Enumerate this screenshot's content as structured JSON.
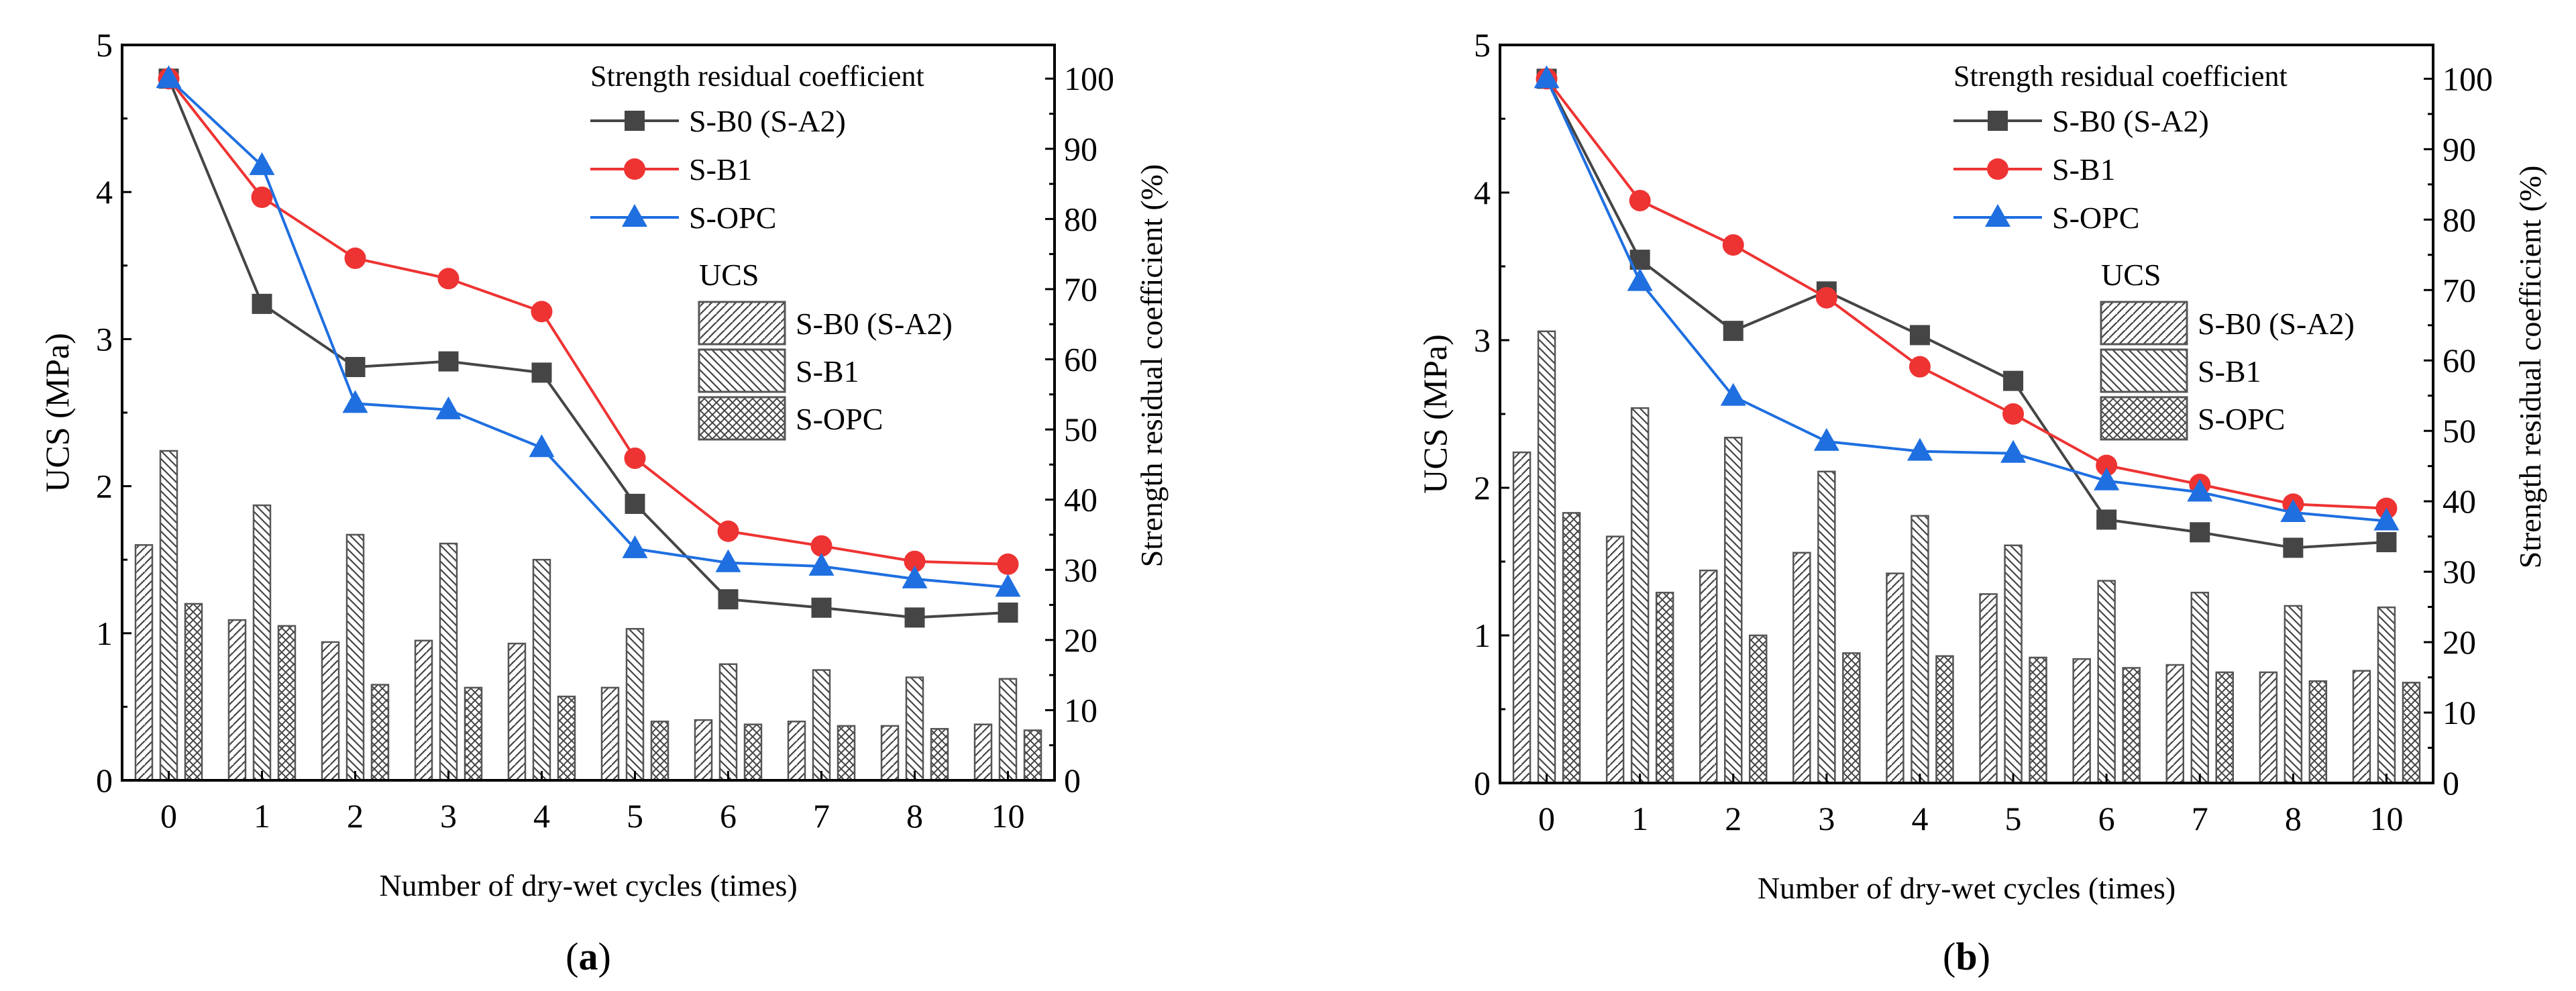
{
  "chart_data": [
    {
      "type": "bar+line",
      "panel_label": "a",
      "xlabel": "Number of dry-wet cycles (times)",
      "ylabel": "UCS (MPa)",
      "y2label": "Strength residual coefficient (%)",
      "ylim": [
        0,
        5
      ],
      "y2lim": [
        0,
        104.8
      ],
      "yticks": [
        "0",
        "1",
        "2",
        "3",
        "4",
        "5"
      ],
      "y2ticks": [
        "0",
        "10",
        "20",
        "30",
        "40",
        "50",
        "60",
        "70",
        "80",
        "90",
        "100"
      ],
      "categories": [
        "0",
        "1",
        "2",
        "3",
        "4",
        "5",
        "6",
        "7",
        "8",
        "10"
      ],
      "line_legend_title": "Strength residual coefficient",
      "bar_legend_title": "UCS",
      "line_series": [
        {
          "name": "S-B0 (S-A2)",
          "color": "#454545",
          "marker": "square",
          "values": [
            100,
            67.9,
            58.9,
            59.7,
            58.1,
            39.4,
            25.8,
            24.6,
            23.2,
            23.9
          ]
        },
        {
          "name": "S-B1",
          "color": "#ee3333",
          "marker": "circle",
          "values": [
            100,
            83.1,
            74.4,
            71.5,
            66.8,
            45.9,
            35.5,
            33.4,
            31.2,
            30.8
          ]
        },
        {
          "name": "S-OPC",
          "color": "#1f6fe0",
          "marker": "triangle",
          "values": [
            100,
            87.6,
            53.7,
            52.8,
            47.4,
            33.0,
            31.0,
            30.5,
            28.7,
            27.5
          ]
        }
      ],
      "bar_series": [
        {
          "name": "S-B0 (S-A2)",
          "pattern": "forward-hatch",
          "values": [
            1.6,
            1.09,
            0.94,
            0.95,
            0.93,
            0.63,
            0.41,
            0.4,
            0.37,
            0.38
          ]
        },
        {
          "name": "S-B1",
          "pattern": "back-hatch",
          "values": [
            2.24,
            1.87,
            1.67,
            1.61,
            1.5,
            1.03,
            0.79,
            0.75,
            0.7,
            0.69
          ]
        },
        {
          "name": "S-OPC",
          "pattern": "cross-hatch",
          "values": [
            1.2,
            1.05,
            0.65,
            0.63,
            0.57,
            0.4,
            0.38,
            0.37,
            0.35,
            0.34
          ]
        }
      ]
    },
    {
      "type": "bar+line",
      "panel_label": "b",
      "xlabel": "Number of dry-wet cycles (times)",
      "ylabel": "UCS (MPa)",
      "y2label": "Strength residual coefficient (%)",
      "ylim": [
        0,
        5
      ],
      "y2lim": [
        0,
        104.8
      ],
      "yticks": [
        "0",
        "1",
        "2",
        "3",
        "4",
        "5"
      ],
      "y2ticks": [
        "0",
        "10",
        "20",
        "30",
        "40",
        "50",
        "60",
        "70",
        "80",
        "90",
        "100"
      ],
      "categories": [
        "0",
        "1",
        "2",
        "3",
        "4",
        "5",
        "6",
        "7",
        "8",
        "10"
      ],
      "line_legend_title": "Strength residual coefficient",
      "bar_legend_title": "UCS",
      "line_series": [
        {
          "name": "S-B0 (S-A2)",
          "color": "#454545",
          "marker": "square",
          "values": [
            100,
            74.3,
            64.2,
            69.8,
            63.6,
            57.1,
            37.4,
            35.6,
            33.4,
            34.2
          ]
        },
        {
          "name": "S-B1",
          "color": "#ee3333",
          "marker": "circle",
          "values": [
            100,
            82.7,
            76.4,
            68.9,
            59.1,
            52.4,
            45.1,
            42.4,
            39.6,
            39.0
          ]
        },
        {
          "name": "S-OPC",
          "color": "#1f6fe0",
          "marker": "triangle",
          "values": [
            100,
            71.2,
            54.9,
            48.5,
            47.1,
            46.8,
            42.9,
            41.3,
            38.4,
            37.2
          ]
        }
      ],
      "bar_series": [
        {
          "name": "S-B0 (S-A2)",
          "pattern": "forward-hatch",
          "values": [
            2.24,
            1.67,
            1.44,
            1.56,
            1.42,
            1.28,
            0.84,
            0.8,
            0.75,
            0.76
          ]
        },
        {
          "name": "S-B1",
          "pattern": "back-hatch",
          "values": [
            3.06,
            2.54,
            2.34,
            2.11,
            1.81,
            1.61,
            1.37,
            1.29,
            1.2,
            1.19
          ]
        },
        {
          "name": "S-OPC",
          "pattern": "cross-hatch",
          "values": [
            1.83,
            1.29,
            1.0,
            0.88,
            0.86,
            0.85,
            0.78,
            0.75,
            0.69,
            0.68
          ]
        }
      ]
    }
  ]
}
